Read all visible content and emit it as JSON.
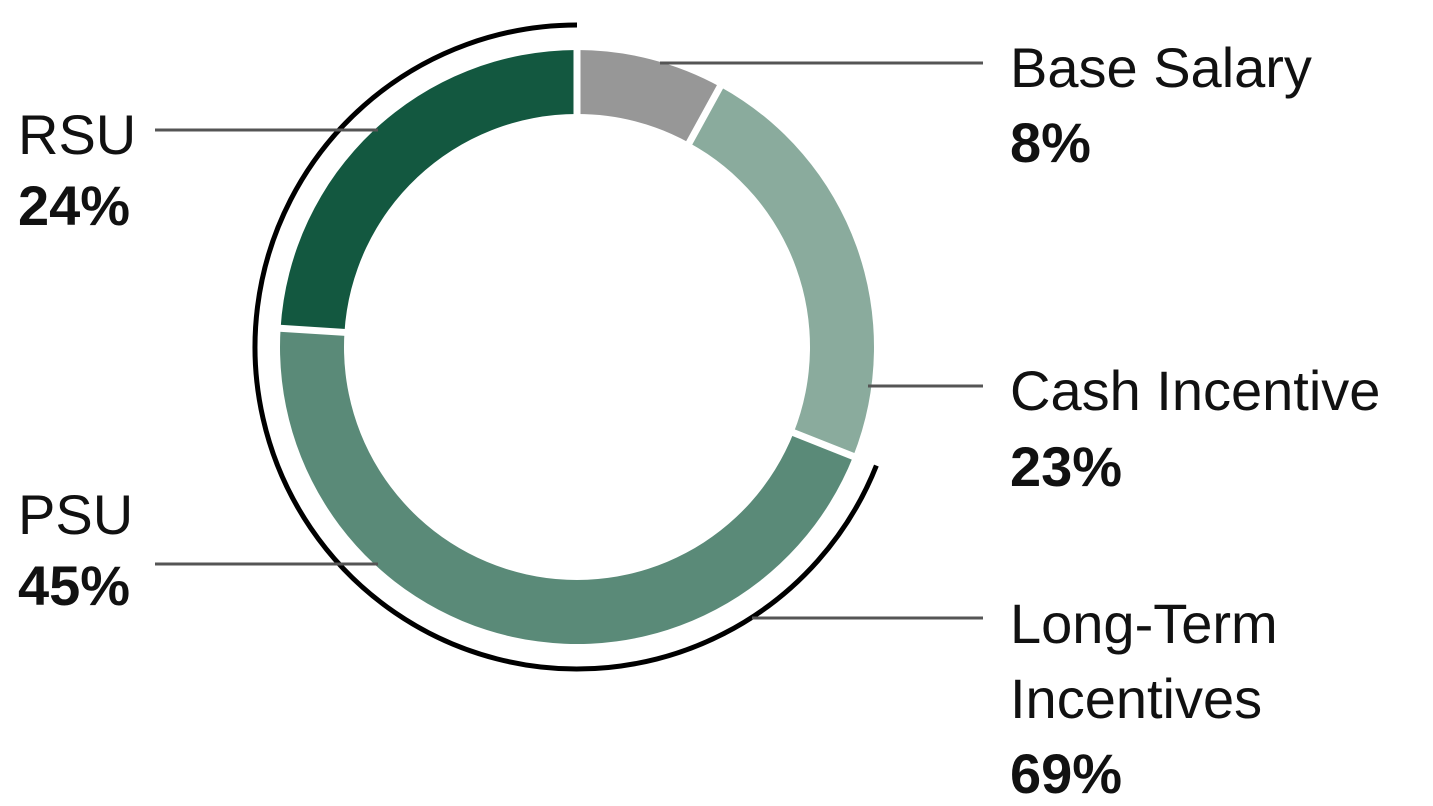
{
  "chart_data": {
    "type": "pie",
    "style": "donut",
    "slices": [
      {
        "label": "Base Salary",
        "value": 8,
        "value_label": "8%",
        "color": "#979797"
      },
      {
        "label": "Cash Incentive",
        "value": 23,
        "value_label": "23%",
        "color": "#8aab9d"
      },
      {
        "label": "PSU",
        "value": 45,
        "value_label": "45%",
        "color": "#5a8a78"
      },
      {
        "label": "RSU",
        "value": 24,
        "value_label": "24%",
        "color": "#135840"
      }
    ],
    "groups": [
      {
        "label_lines": [
          "Long-Term",
          "Incentives"
        ],
        "value": 69,
        "value_label": "69%",
        "members": [
          "PSU",
          "RSU"
        ]
      }
    ],
    "start": "top",
    "direction": "clockwise"
  }
}
